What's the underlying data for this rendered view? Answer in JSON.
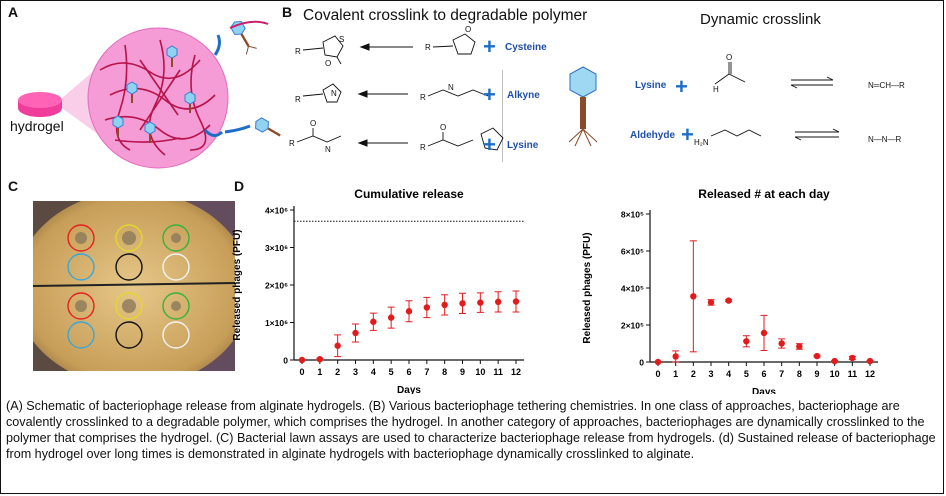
{
  "colors": {
    "accent_blue": "#1e6ec8",
    "marker_red": "#e31b1b",
    "hydrogel_pink": "#f03c9b",
    "sphere_pink": "#f59bd5",
    "text_blue": "#1f4fa8"
  },
  "panels": {
    "a": {
      "label": "A",
      "hydrogel_label": "hydrogel"
    },
    "b": {
      "label": "B",
      "covalent_title": "Covalent crosslink to degradable polymer",
      "dynamic_title": "Dynamic crosslink",
      "covalent_reagents": [
        "Cysteine",
        "Alkyne",
        "Lysine"
      ],
      "dynamic_reagents": [
        "Lysine",
        "Aldehyde"
      ],
      "plus": "+",
      "chem_labels": {
        "r": "R",
        "h": "H",
        "o": "O",
        "n": "N",
        "s": "S",
        "h2n": "H₂N",
        "imine": "N═CH—R",
        "hydrazone": "N—N—R"
      }
    },
    "c": {
      "label": "C"
    },
    "d": {
      "label": "D"
    }
  },
  "chart_data": [
    {
      "type": "scatter",
      "title": "Cumulative release",
      "xlabel": "Days",
      "ylabel": "Released phages (PFU)",
      "x": [
        0,
        1,
        2,
        3,
        4,
        5,
        6,
        7,
        8,
        9,
        10,
        11,
        12
      ],
      "y": [
        0,
        20000,
        380000,
        720000,
        1020000,
        1130000,
        1300000,
        1400000,
        1470000,
        1510000,
        1530000,
        1550000,
        1560000
      ],
      "y_err": [
        0,
        30000,
        290000,
        240000,
        230000,
        280000,
        280000,
        270000,
        270000,
        270000,
        260000,
        270000,
        280000
      ],
      "ylim": [
        0,
        4000000
      ],
      "yticks": [
        0,
        1000000,
        2000000,
        3000000,
        4000000
      ],
      "ytick_labels": [
        "0",
        "1×10⁶",
        "2×10⁶",
        "3×10⁶",
        "4×10⁶"
      ],
      "reference_line": 3700000,
      "marker_color": "#e31b1b"
    },
    {
      "type": "scatter",
      "title": "Released # at each day",
      "xlabel": "Days",
      "ylabel": "Released phages (PFU)",
      "x": [
        0,
        1,
        2,
        3,
        4,
        5,
        6,
        7,
        8,
        9,
        10,
        11,
        12
      ],
      "y": [
        0,
        30000,
        355000,
        322000,
        332000,
        112000,
        157000,
        100000,
        84000,
        32000,
        5000,
        22000,
        5000
      ],
      "y_err": [
        0,
        30000,
        300000,
        15000,
        5000,
        30000,
        95000,
        25000,
        15000,
        5000,
        3000,
        8000,
        3000
      ],
      "ylim": [
        0,
        800000
      ],
      "yticks": [
        0,
        200000,
        400000,
        600000,
        800000
      ],
      "ytick_labels": [
        "0",
        "2×10⁵",
        "4×10⁵",
        "6×10⁵",
        "8×10⁵"
      ],
      "marker_color": "#e31b1b"
    }
  ],
  "caption": "(A) Schematic of bacteriophage release from alginate hydrogels. (B) Various bacteriophage tethering chemistries. In one class of approaches, bacteriophage are covalently crosslinked to a degradable polymer, which comprises the hydrogel. In another category of approaches, bacteriophages are dynamically crosslinked to the polymer that comprises the hydrogel. (C) Bacterial lawn assays are used to characterize bacteriophage release from hydrogels. (d) Sustained release of bacteriophage from hydrogel over long times is demonstrated in alginate hydrogels with bacteriophage dynamically crosslinked to alginate."
}
